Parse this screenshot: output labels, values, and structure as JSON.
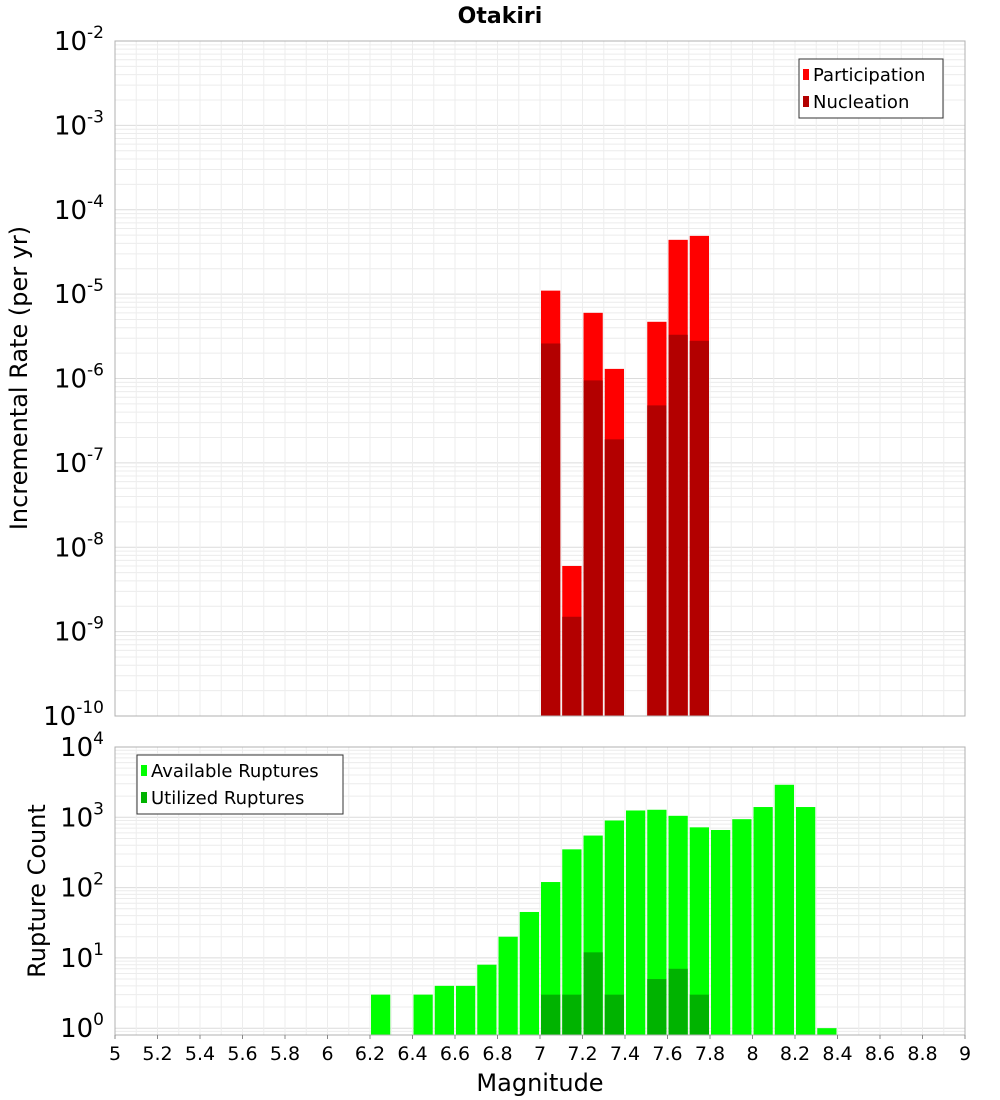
{
  "title": "Otakiri",
  "colors": {
    "participation": "#ff0000",
    "nucleation": "#b30000",
    "available": "#00ff00",
    "utilized": "#00b300"
  },
  "chart_data": [
    {
      "type": "bar",
      "title": "Otakiri",
      "ylabel": "Incremental Rate (per yr)",
      "yscale": "log",
      "ylim": [
        1e-10,
        0.01
      ],
      "xlim": [
        5,
        9
      ],
      "ytick_labels": [
        {
          "base": "10",
          "exp": "-10",
          "value": 1e-10
        },
        {
          "base": "10",
          "exp": "-9",
          "value": 1e-09
        },
        {
          "base": "10",
          "exp": "-8",
          "value": 1e-08
        },
        {
          "base": "10",
          "exp": "-7",
          "value": 1e-07
        },
        {
          "base": "10",
          "exp": "-6",
          "value": 1e-06
        },
        {
          "base": "10",
          "exp": "-5",
          "value": 1e-05
        },
        {
          "base": "10",
          "exp": "-4",
          "value": 0.0001
        },
        {
          "base": "10",
          "exp": "-3",
          "value": 0.001
        },
        {
          "base": "10",
          "exp": "-2",
          "value": 0.01
        }
      ],
      "legend": [
        "Participation",
        "Nucleation"
      ],
      "legend_position": "top-right",
      "grid": true,
      "series": [
        {
          "name": "Participation",
          "x": [
            7.05,
            7.15,
            7.25,
            7.35,
            7.55,
            7.65,
            7.75
          ],
          "values": [
            1.1e-05,
            6e-09,
            6e-06,
            1.3e-06,
            4.7e-06,
            4.4e-05,
            4.9e-05
          ]
        },
        {
          "name": "Nucleation",
          "x": [
            7.05,
            7.15,
            7.25,
            7.35,
            7.55,
            7.65,
            7.75
          ],
          "values": [
            2.6e-06,
            1.5e-09,
            9.5e-07,
            1.9e-07,
            4.8e-07,
            3.3e-06,
            2.8e-06
          ]
        }
      ]
    },
    {
      "type": "bar",
      "ylabel": "Rupture Count",
      "xlabel": "Magnitude",
      "yscale": "log",
      "ylim": [
        0.8,
        10000
      ],
      "xlim": [
        5,
        9
      ],
      "ytick_labels": [
        {
          "base": "10",
          "exp": "0",
          "value": 1
        },
        {
          "base": "10",
          "exp": "1",
          "value": 10
        },
        {
          "base": "10",
          "exp": "2",
          "value": 100
        },
        {
          "base": "10",
          "exp": "3",
          "value": 1000
        },
        {
          "base": "10",
          "exp": "4",
          "value": 10000
        }
      ],
      "xtick_labels": [
        "5",
        "5.2",
        "5.4",
        "5.6",
        "5.8",
        "6",
        "6.2",
        "6.4",
        "6.6",
        "6.8",
        "7",
        "7.2",
        "7.4",
        "7.6",
        "7.8",
        "8",
        "8.2",
        "8.4",
        "8.6",
        "8.8",
        "9"
      ],
      "legend": [
        "Available Ruptures",
        "Utilized Ruptures"
      ],
      "legend_position": "top-left",
      "grid": true,
      "series": [
        {
          "name": "Available Ruptures",
          "x": [
            6.25,
            6.45,
            6.55,
            6.65,
            6.75,
            6.85,
            6.95,
            7.05,
            7.15,
            7.25,
            7.35,
            7.45,
            7.55,
            7.65,
            7.75,
            7.85,
            7.95,
            8.05,
            8.15,
            8.25,
            8.35
          ],
          "values": [
            3,
            3,
            4,
            4,
            8,
            20,
            45,
            120,
            350,
            550,
            900,
            1250,
            1280,
            1050,
            720,
            660,
            940,
            1400,
            2900,
            1400,
            1
          ]
        },
        {
          "name": "Utilized Ruptures",
          "x": [
            7.05,
            7.15,
            7.25,
            7.35,
            7.55,
            7.65,
            7.75
          ],
          "values": [
            3,
            3,
            12,
            3,
            5,
            7,
            3
          ]
        }
      ]
    }
  ]
}
